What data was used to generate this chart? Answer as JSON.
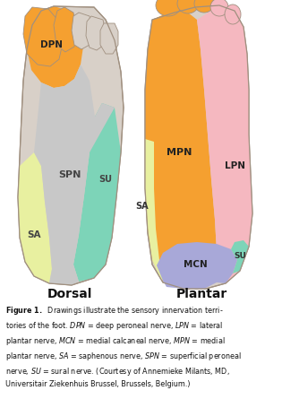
{
  "dorsal_label": "Dorsal",
  "plantar_label": "Plantar",
  "colors": {
    "DPN": "#F5A030",
    "SPN": "#C8C8C8",
    "SA": "#E8F0A0",
    "SU": "#7DD4B8",
    "MPN": "#F5A030",
    "LPN": "#F5B8C0",
    "MCN": "#A8A8D8",
    "SA_plantar": "#E8F0A0",
    "SU_plantar": "#7DD4B8",
    "foot_skin": "#D8D0C8",
    "bg": "#FFFFFF",
    "outline": "#A09080"
  },
  "caption_bold": "Figure 1.",
  "caption_rest": "  Drawings illustrate the sensory innervation terri-\ntories of the foot. DPN = deep peroneal nerve, LPN = lateral\nplantar nerve, MCN = medial calcaneal nerve, MPN = medial\nplantar nerve, SA = saphenous nerve, SPN = superficial peroneal\nnerve, SU = sural nerve. (Courtesy of Annemieke Milants, MD,\nUniersitair Ziekenhuis Brussel, Brussels, Belgium.)"
}
